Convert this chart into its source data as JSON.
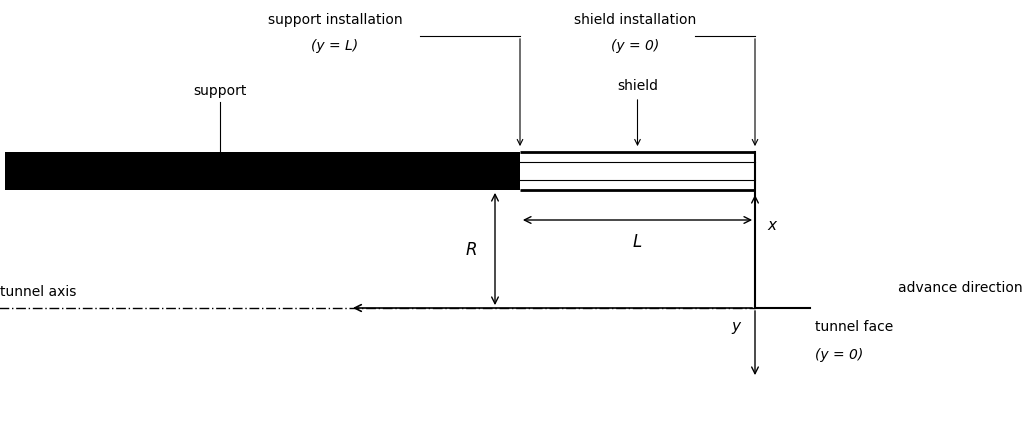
{
  "fig_width": 10.23,
  "fig_height": 4.27,
  "dpi": 100,
  "bg_color": "#ffffff",
  "labels": {
    "support_installation": "support installation",
    "support_installation_sub": "(y = L)",
    "shield_installation": "shield installation",
    "shield_installation_sub": "(y = 0)",
    "support": "support",
    "shield": "shield",
    "L_label": "L",
    "R_label": "R",
    "x_label": "x",
    "y_label": "y",
    "advance_direction": "advance direction",
    "tunnel_axis": "tunnel axis",
    "tunnel_face": "tunnel face",
    "tunnel_face_sub": "(y = 0)"
  },
  "fontsize": 10
}
